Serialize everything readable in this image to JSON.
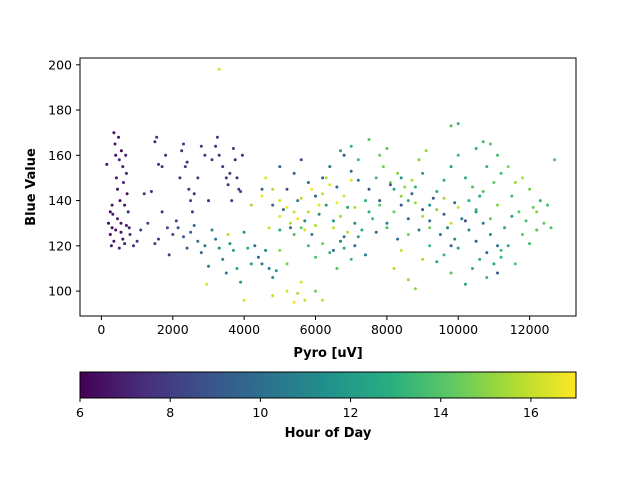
{
  "chart_data": {
    "type": "scatter",
    "xlabel": "Pyro [uV]",
    "ylabel": "Blue Value",
    "xlim": [
      -600,
      13300
    ],
    "ylim": [
      89,
      203
    ],
    "xticks": [
      0,
      2000,
      4000,
      6000,
      8000,
      10000,
      12000
    ],
    "yticks": [
      100,
      120,
      140,
      160,
      180,
      200
    ],
    "colorbar": {
      "label": "Hour of Day",
      "range": [
        6,
        17
      ],
      "ticks": [
        6,
        8,
        10,
        12,
        14,
        16
      ],
      "colormap": "viridis"
    },
    "marker_color_encodes": "Hour of Day",
    "points": [
      [
        150,
        156,
        6.5
      ],
      [
        200,
        130,
        6.3
      ],
      [
        250,
        125,
        6.2
      ],
      [
        280,
        120,
        6.6
      ],
      [
        300,
        128,
        6.4
      ],
      [
        320,
        134,
        6.7
      ],
      [
        350,
        170,
        6.5
      ],
      [
        380,
        165,
        6.8
      ],
      [
        400,
        160,
        6.3
      ],
      [
        420,
        150,
        6.9
      ],
      [
        450,
        145,
        6.4
      ],
      [
        480,
        168,
        6.6
      ],
      [
        500,
        158,
        7.0
      ],
      [
        520,
        140,
        6.5
      ],
      [
        550,
        130,
        6.7
      ],
      [
        560,
        162,
        6.2
      ],
      [
        600,
        155,
        6.8
      ],
      [
        620,
        148,
        7.1
      ],
      [
        650,
        138,
        6.6
      ],
      [
        680,
        160,
        7.0
      ],
      [
        700,
        152,
        6.9
      ],
      [
        720,
        143,
        6.4
      ],
      [
        750,
        135,
        7.2
      ],
      [
        780,
        128,
        6.8
      ],
      [
        800,
        125,
        7.3
      ],
      [
        350,
        122,
        6.5
      ],
      [
        400,
        127,
        6.6
      ],
      [
        450,
        132,
        6.9
      ],
      [
        500,
        119,
        7.0
      ],
      [
        550,
        126,
        6.4
      ],
      [
        600,
        123,
        6.7
      ],
      [
        650,
        121,
        7.1
      ],
      [
        700,
        129,
        6.8
      ],
      [
        250,
        135,
        6.3
      ],
      [
        300,
        138,
        6.6
      ],
      [
        900,
        120,
        7.5
      ],
      [
        1000,
        122,
        7.8
      ],
      [
        1100,
        127,
        8.1
      ],
      [
        1200,
        143,
        7.6
      ],
      [
        1300,
        130,
        7.9
      ],
      [
        1400,
        144,
        7.4
      ],
      [
        1500,
        166,
        7.2
      ],
      [
        1550,
        168,
        7.3
      ],
      [
        1600,
        156,
        7.5
      ],
      [
        1700,
        155,
        7.7
      ],
      [
        1800,
        160,
        7.4
      ],
      [
        1500,
        121,
        7.8
      ],
      [
        1600,
        123,
        8.0
      ],
      [
        1700,
        135,
        7.6
      ],
      [
        1850,
        128,
        8.3
      ],
      [
        1900,
        116,
        7.9
      ],
      [
        2000,
        125,
        8.5
      ],
      [
        2100,
        131,
        8.2
      ],
      [
        2150,
        128,
        8.8
      ],
      [
        2200,
        150,
        7.6
      ],
      [
        2250,
        162,
        7.4
      ],
      [
        2300,
        165,
        7.7
      ],
      [
        2350,
        155,
        7.9
      ],
      [
        2400,
        157,
        7.5
      ],
      [
        2450,
        145,
        7.8
      ],
      [
        2500,
        140,
        8.1
      ],
      [
        2550,
        135,
        7.7
      ],
      [
        2600,
        143,
        7.4
      ],
      [
        2700,
        150,
        7.9
      ],
      [
        2800,
        164,
        7.6
      ],
      [
        2900,
        160,
        7.5
      ],
      [
        3000,
        140,
        7.3
      ],
      [
        3100,
        158,
        7.8
      ],
      [
        3200,
        164,
        7.4
      ],
      [
        3250,
        168,
        7.6
      ],
      [
        3300,
        160,
        7.7
      ],
      [
        3400,
        155,
        7.9
      ],
      [
        3500,
        150,
        7.5
      ],
      [
        3550,
        147,
        7.6
      ],
      [
        3600,
        152,
        7.8
      ],
      [
        3650,
        140,
        8.0
      ],
      [
        3700,
        163,
        7.7
      ],
      [
        3750,
        158,
        7.3
      ],
      [
        3800,
        150,
        7.5
      ],
      [
        3850,
        145,
        7.8
      ],
      [
        3900,
        144,
        8.2
      ],
      [
        3950,
        160,
        7.6
      ],
      [
        2300,
        124,
        9.0
      ],
      [
        2400,
        119,
        9.3
      ],
      [
        2500,
        126,
        9.5
      ],
      [
        2600,
        129,
        10.0
      ],
      [
        2700,
        122,
        10.3
      ],
      [
        2800,
        117,
        9.8
      ],
      [
        2900,
        120,
        10.5
      ],
      [
        3000,
        111,
        10.8
      ],
      [
        3100,
        127,
        11.2
      ],
      [
        3200,
        123,
        10.6
      ],
      [
        3300,
        119,
        11.5
      ],
      [
        3400,
        114,
        11.0
      ],
      [
        3500,
        108,
        10.4
      ],
      [
        3600,
        121,
        11.8
      ],
      [
        3700,
        118,
        12.2
      ],
      [
        3800,
        110,
        12.5
      ],
      [
        3900,
        104,
        12.0
      ],
      [
        4000,
        126,
        11.6
      ],
      [
        4100,
        119,
        12.8
      ],
      [
        4200,
        112,
        12.4
      ],
      [
        4300,
        120,
        10.2
      ],
      [
        4400,
        115,
        9.8
      ],
      [
        4500,
        112,
        10.4
      ],
      [
        4600,
        118,
        11.0
      ],
      [
        4700,
        110,
        10.6
      ],
      [
        4800,
        106,
        11.3
      ],
      [
        4900,
        109,
        12.0
      ],
      [
        5000,
        127,
        12.6
      ],
      [
        2950,
        103,
        16.5
      ],
      [
        3300,
        198,
        16.2
      ],
      [
        3550,
        125,
        15.8
      ],
      [
        4000,
        96,
        16.5
      ],
      [
        4200,
        138,
        15.5
      ],
      [
        4500,
        142,
        16.8
      ],
      [
        4700,
        128,
        16.2
      ],
      [
        4800,
        98,
        15.9
      ],
      [
        5000,
        133,
        16.6
      ],
      [
        5200,
        100,
        16.3
      ],
      [
        5400,
        95,
        16.9
      ],
      [
        5500,
        99,
        15.7
      ],
      [
        5600,
        104,
        16.4
      ],
      [
        5700,
        96,
        16.1
      ],
      [
        6200,
        96,
        16.0
      ],
      [
        6000,
        100,
        14.5
      ],
      [
        4600,
        150,
        16.5
      ],
      [
        4800,
        145,
        15.8
      ],
      [
        5000,
        140,
        16.2
      ],
      [
        5200,
        137,
        16.7
      ],
      [
        5300,
        130,
        15.6
      ],
      [
        5400,
        135,
        16.3
      ],
      [
        5500,
        132,
        16.9
      ],
      [
        5600,
        141,
        15.9
      ],
      [
        5700,
        127,
        16.4
      ],
      [
        5800,
        135,
        16.0
      ],
      [
        5900,
        145,
        16.8
      ],
      [
        6000,
        129,
        15.7
      ],
      [
        6100,
        138,
        16.5
      ],
      [
        6200,
        143,
        16.2
      ],
      [
        6300,
        150,
        15.8
      ],
      [
        6400,
        147,
        16.6
      ],
      [
        6500,
        128,
        16.1
      ],
      [
        6600,
        139,
        16.9
      ],
      [
        6700,
        133,
        15.5
      ],
      [
        6800,
        142,
        16.4
      ],
      [
        6900,
        126,
        16.0
      ],
      [
        7000,
        149,
        16.7
      ],
      [
        7100,
        137,
        15.6
      ],
      [
        5000,
        118,
        15.0
      ],
      [
        5200,
        112,
        14.6
      ],
      [
        5400,
        125,
        13.8
      ],
      [
        5600,
        128,
        14.2
      ],
      [
        5800,
        120,
        13.5
      ],
      [
        6000,
        115,
        13.9
      ],
      [
        6200,
        121,
        14.7
      ],
      [
        6400,
        117,
        13.2
      ],
      [
        6600,
        110,
        14.0
      ],
      [
        6800,
        119,
        12.8
      ],
      [
        7000,
        114,
        13.6
      ],
      [
        7200,
        124,
        12.4
      ],
      [
        5000,
        155,
        9.5
      ],
      [
        5200,
        145,
        8.8
      ],
      [
        5400,
        152,
        9.2
      ],
      [
        5600,
        158,
        8.5
      ],
      [
        5800,
        148,
        10.0
      ],
      [
        6000,
        142,
        9.7
      ],
      [
        6200,
        150,
        9.0
      ],
      [
        6400,
        155,
        10.2
      ],
      [
        6600,
        146,
        9.4
      ],
      [
        6800,
        160,
        8.9
      ],
      [
        7000,
        153,
        9.8
      ],
      [
        7200,
        149,
        10.4
      ],
      [
        4500,
        145,
        9.2
      ],
      [
        4800,
        138,
        9.6
      ],
      [
        5100,
        136,
        10.1
      ],
      [
        5300,
        128,
        9.7
      ],
      [
        5500,
        140,
        10.5
      ],
      [
        5700,
        131,
        11.0
      ],
      [
        5900,
        125,
        10.8
      ],
      [
        6100,
        134,
        11.4
      ],
      [
        6300,
        138,
        12.0
      ],
      [
        6500,
        131,
        11.7
      ],
      [
        6700,
        122,
        10.9
      ],
      [
        6900,
        137,
        12.3
      ],
      [
        7100,
        130,
        11.1
      ],
      [
        7300,
        127,
        12.6
      ],
      [
        7500,
        135,
        12.9
      ],
      [
        6700,
        162,
        12.1
      ],
      [
        7000,
        164,
        13.2
      ],
      [
        7200,
        158,
        13.5
      ],
      [
        7500,
        167,
        13.9
      ],
      [
        7800,
        160,
        14.3
      ],
      [
        8000,
        163,
        14.0
      ],
      [
        7700,
        150,
        13.4
      ],
      [
        7900,
        155,
        14.6
      ],
      [
        8100,
        148,
        15.0
      ],
      [
        8300,
        152,
        14.8
      ],
      [
        8500,
        146,
        15.3
      ],
      [
        8700,
        149,
        15.6
      ],
      [
        8900,
        158,
        14.9
      ],
      [
        9100,
        162,
        15.2
      ],
      [
        7400,
        140,
        13.0
      ],
      [
        7600,
        132,
        13.6
      ],
      [
        7800,
        138,
        14.2
      ],
      [
        8000,
        128,
        13.8
      ],
      [
        8200,
        135,
        14.4
      ],
      [
        8400,
        142,
        15.1
      ],
      [
        8600,
        125,
        14.7
      ],
      [
        8800,
        139,
        15.4
      ],
      [
        9000,
        133,
        15.8
      ],
      [
        9200,
        128,
        14.5
      ],
      [
        9400,
        136,
        15.0
      ],
      [
        9600,
        141,
        15.5
      ],
      [
        9800,
        130,
        15.9
      ],
      [
        10000,
        137,
        16.1
      ],
      [
        8200,
        110,
        15.6
      ],
      [
        8400,
        118,
        16.0
      ],
      [
        8600,
        105,
        15.3
      ],
      [
        8800,
        101,
        14.9
      ],
      [
        9000,
        114,
        15.7
      ],
      [
        9200,
        120,
        13.2
      ],
      [
        9400,
        113,
        12.8
      ],
      [
        9600,
        116,
        13.5
      ],
      [
        9800,
        108,
        14.1
      ],
      [
        10000,
        119,
        12.6
      ],
      [
        10200,
        103,
        12.3
      ],
      [
        10400,
        110,
        13.0
      ],
      [
        10600,
        114,
        12.9
      ],
      [
        10800,
        106,
        13.4
      ],
      [
        11000,
        112,
        12.7
      ],
      [
        11200,
        118,
        13.6
      ],
      [
        8200,
        145,
        12.4
      ],
      [
        8400,
        150,
        11.8
      ],
      [
        8600,
        140,
        12.9
      ],
      [
        8800,
        146,
        13.3
      ],
      [
        9000,
        152,
        12.1
      ],
      [
        9200,
        138,
        11.5
      ],
      [
        9400,
        144,
        12.7
      ],
      [
        9600,
        149,
        13.0
      ],
      [
        9800,
        155,
        12.2
      ],
      [
        10000,
        160,
        13.5
      ],
      [
        10200,
        150,
        12.8
      ],
      [
        10400,
        146,
        13.9
      ],
      [
        10600,
        142,
        12.5
      ],
      [
        10800,
        155,
        13.2
      ],
      [
        11000,
        148,
        14.1
      ],
      [
        11200,
        152,
        13.7
      ],
      [
        9800,
        173,
        13.8
      ],
      [
        10000,
        174,
        13.2
      ],
      [
        10500,
        163,
        12.9
      ],
      [
        10700,
        166,
        13.5
      ],
      [
        10900,
        165,
        14.0
      ],
      [
        11100,
        160,
        13.6
      ],
      [
        9700,
        128,
        10.9
      ],
      [
        9900,
        123,
        11.4
      ],
      [
        10100,
        132,
        10.6
      ],
      [
        10300,
        127,
        11.0
      ],
      [
        10500,
        135,
        11.6
      ],
      [
        10700,
        130,
        10.7
      ],
      [
        10900,
        125,
        11.3
      ],
      [
        11100,
        120,
        10.5
      ],
      [
        11300,
        128,
        11.8
      ],
      [
        11500,
        133,
        12.2
      ],
      [
        10300,
        140,
        12.8
      ],
      [
        10500,
        136,
        13.4
      ],
      [
        10700,
        144,
        13.9
      ],
      [
        10900,
        132,
        14.4
      ],
      [
        11100,
        138,
        14.8
      ],
      [
        11300,
        128,
        13.3
      ],
      [
        11500,
        142,
        13.7
      ],
      [
        11700,
        135,
        14.2
      ],
      [
        11900,
        131,
        13.8
      ],
      [
        12100,
        137,
        14.5
      ],
      [
        12300,
        140,
        13.1
      ],
      [
        12500,
        138,
        13.6
      ],
      [
        12700,
        158,
        14.0
      ],
      [
        11400,
        155,
        14.9
      ],
      [
        11600,
        148,
        15.3
      ],
      [
        11800,
        150,
        15.7
      ],
      [
        12000,
        145,
        14.6
      ],
      [
        12200,
        135,
        15.1
      ],
      [
        12400,
        130,
        14.3
      ],
      [
        12600,
        128,
        13.9
      ],
      [
        11200,
        115,
        13.4
      ],
      [
        11400,
        120,
        12.9
      ],
      [
        11600,
        112,
        13.8
      ],
      [
        11800,
        125,
        14.2
      ],
      [
        12000,
        121,
        13.5
      ],
      [
        12200,
        127,
        14.0
      ],
      [
        6500,
        118,
        9.6
      ],
      [
        6800,
        124,
        10.2
      ],
      [
        7100,
        120,
        9.9
      ],
      [
        7400,
        116,
        10.4
      ],
      [
        7700,
        126,
        9.7
      ],
      [
        8000,
        130,
        10.8
      ],
      [
        8300,
        123,
        10.1
      ],
      [
        8600,
        132,
        9.4
      ],
      [
        8900,
        127,
        10.6
      ],
      [
        9200,
        131,
        9.8
      ],
      [
        9500,
        125,
        10.3
      ],
      [
        9800,
        120,
        9.5
      ],
      [
        7500,
        145,
        9.0
      ],
      [
        7800,
        140,
        8.7
      ],
      [
        8100,
        147,
        9.3
      ],
      [
        8400,
        138,
        8.9
      ],
      [
        8700,
        143,
        9.6
      ],
      [
        9000,
        136,
        9.1
      ],
      [
        9300,
        141,
        8.8
      ],
      [
        9600,
        134,
        9.4
      ],
      [
        9900,
        139,
        9.9
      ],
      [
        10200,
        131,
        8.6
      ],
      [
        10500,
        122,
        9.2
      ],
      [
        10800,
        117,
        9.7
      ],
      [
        11100,
        108,
        8.9
      ]
    ]
  }
}
